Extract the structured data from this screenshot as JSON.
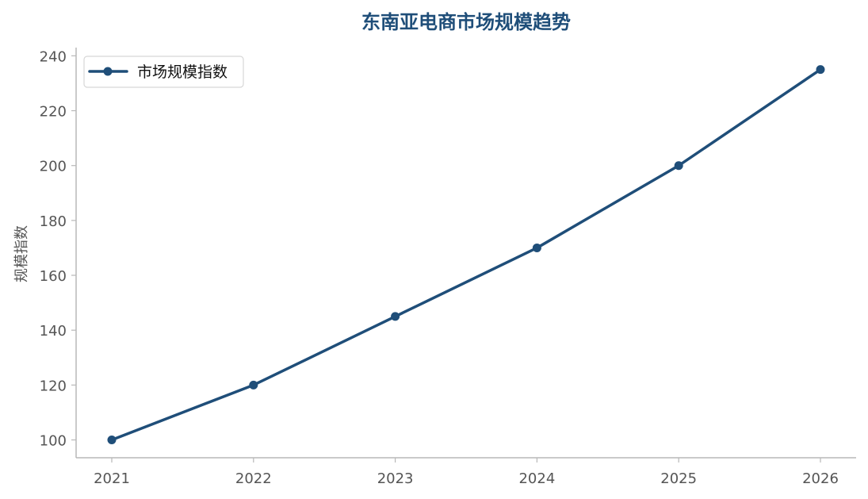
{
  "chart_data": {
    "type": "line",
    "title": "东南亚电商市场规模趋势",
    "xlabel": "",
    "ylabel": "规模指数",
    "x": [
      "2021",
      "2022",
      "2023",
      "2024",
      "2025",
      "2026"
    ],
    "series": [
      {
        "name": "市场规模指数",
        "values": [
          100,
          120,
          145,
          170,
          200,
          235
        ],
        "color": "#1f4e79"
      }
    ],
    "ylim": [
      93.5,
      243
    ],
    "yticks": [
      100,
      120,
      140,
      160,
      180,
      200,
      220,
      240
    ],
    "grid": false,
    "legend": "top-left",
    "colors": {
      "axis": "#b8b8b8",
      "tick_text": "#555555",
      "title": "#1f4e79"
    }
  }
}
